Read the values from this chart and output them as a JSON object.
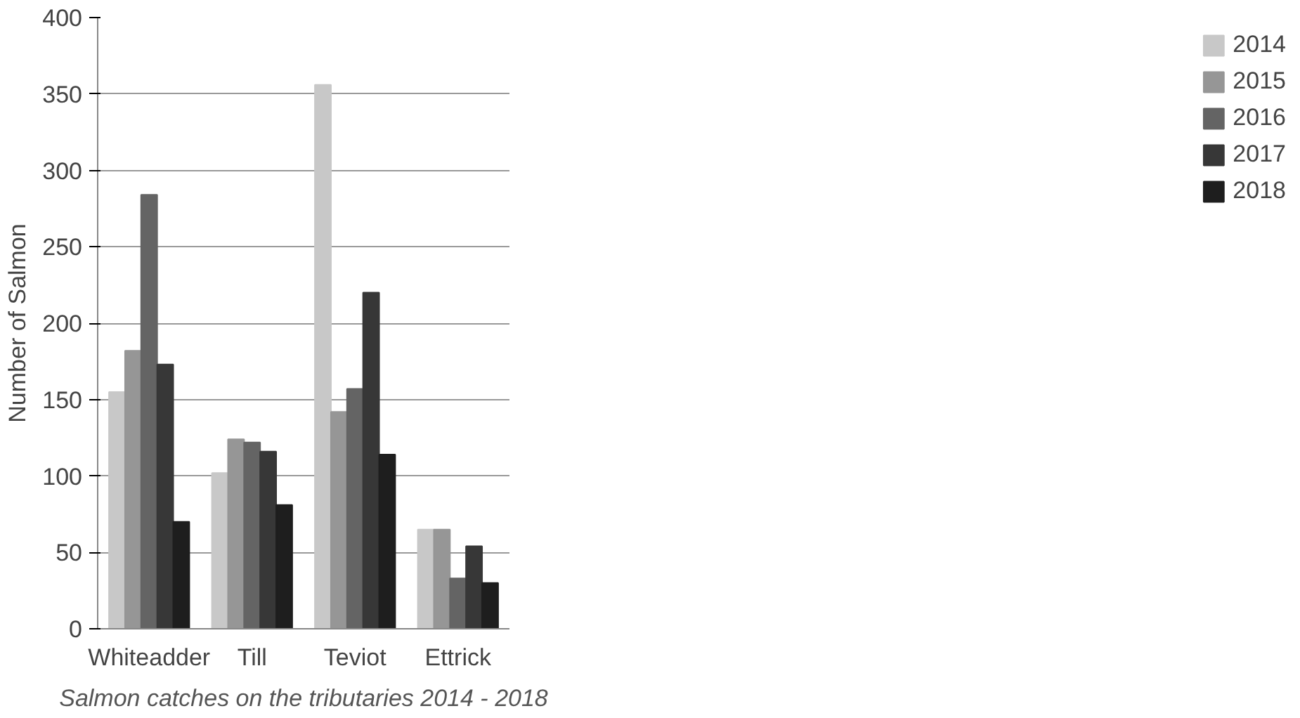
{
  "chart_data": {
    "type": "bar",
    "ylabel": "Number of Salmon",
    "categories": [
      "Whiteadder",
      "Till",
      "Teviot",
      "Ettrick"
    ],
    "series": [
      {
        "name": "2014",
        "color": "#c8c8c8",
        "values": [
          155,
          102,
          356,
          65
        ]
      },
      {
        "name": "2015",
        "color": "#969696",
        "values": [
          182,
          124,
          142,
          65
        ]
      },
      {
        "name": "2016",
        "color": "#646464",
        "values": [
          284,
          122,
          157,
          33
        ]
      },
      {
        "name": "2017",
        "color": "#373737",
        "values": [
          173,
          116,
          220,
          54
        ]
      },
      {
        "name": "2018",
        "color": "#1e1e1e",
        "values": [
          70,
          81,
          114,
          30
        ]
      }
    ],
    "ylim": [
      0,
      400
    ],
    "yticks": [
      0,
      50,
      100,
      150,
      200,
      250,
      300,
      350,
      400
    ],
    "grid": "y",
    "legend": "right",
    "annotations": [
      "Salmon catches on the tributaries 2014 - 2018"
    ]
  }
}
